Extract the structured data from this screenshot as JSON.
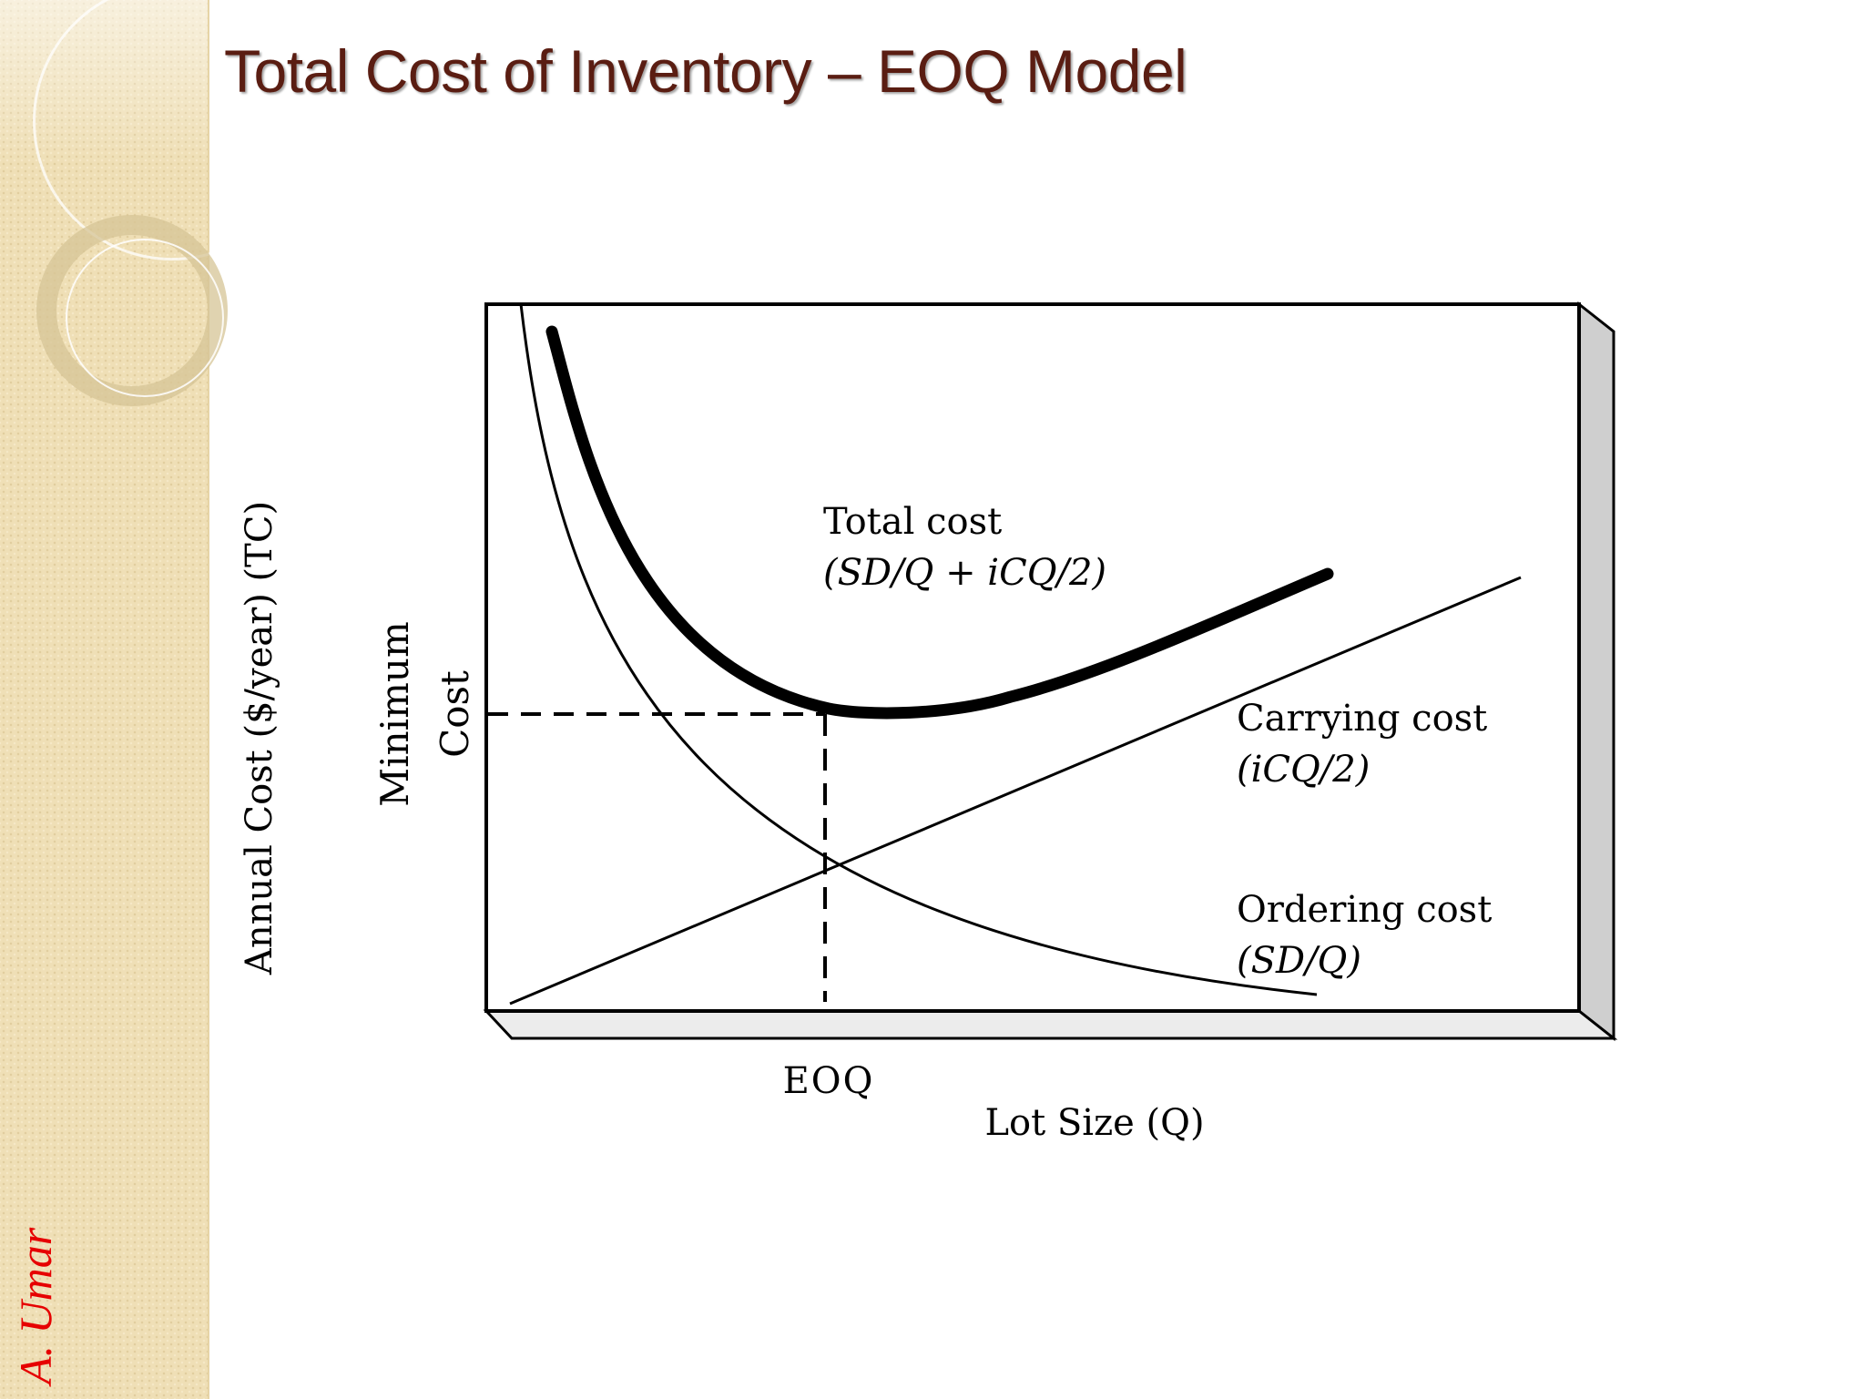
{
  "slide": {
    "title": "Total Cost of Inventory – EOQ Model",
    "author": "A. Umar"
  },
  "diagram": {
    "y_axis_label": "Annual Cost ($/year) (TC)",
    "min_cost_label_line1": "Minimum",
    "min_cost_label_line2": "Cost",
    "x_axis_label": "Lot Size (Q)",
    "eoq_label": "EOQ",
    "total_cost_label": "Total cost",
    "total_cost_formula": "(SD/Q + iCQ/2)",
    "carrying_cost_label": "Carrying cost",
    "carrying_cost_formula": "(iCQ/2)",
    "ordering_cost_label": "Ordering cost",
    "ordering_cost_formula": "(SD/Q)"
  },
  "colors": {
    "title": "#5a1d12",
    "author": "#e60000",
    "sidebar": "#efdfb6",
    "frame_side": "#cfcfcf"
  }
}
